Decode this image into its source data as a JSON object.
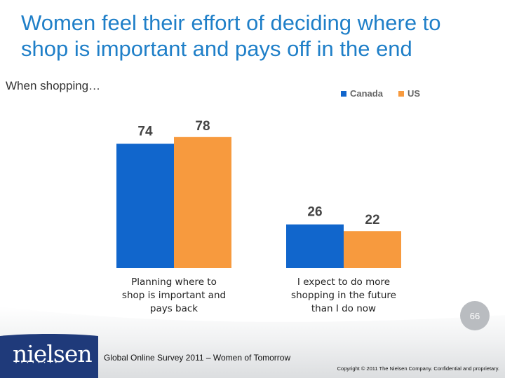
{
  "slide": {
    "title": "Women feel their effort of deciding where to shop is important and pays off in the end",
    "subtitle": "When shopping…",
    "page_number": "66",
    "footer_text": "Global Online Survey 2011 – Women of Tomorrow",
    "copyright": "Copyright © 2011 The Nielsen Company. Confidential and proprietary.",
    "logo_text": "nielsen",
    "logo_dots": "••••••••"
  },
  "colors": {
    "canada": "#1166cc",
    "us": "#f79a3e",
    "title": "#1f7fc8"
  },
  "chart_data": {
    "type": "bar",
    "title": "",
    "categories": [
      "Planning where to shop is important and pays back",
      "I expect to do more shopping in the future than I do now"
    ],
    "category_lines": [
      [
        "Planning where to",
        "shop is important and",
        "pays back"
      ],
      [
        "I expect to do more",
        "shopping in the future",
        "than I do now"
      ]
    ],
    "series": [
      {
        "name": "Canada",
        "values": [
          74,
          26
        ]
      },
      {
        "name": "US",
        "values": [
          78,
          22
        ]
      }
    ],
    "ylim": [
      0,
      100
    ],
    "grid": false,
    "legend_position": "top-right",
    "xlabel": "",
    "ylabel": ""
  }
}
